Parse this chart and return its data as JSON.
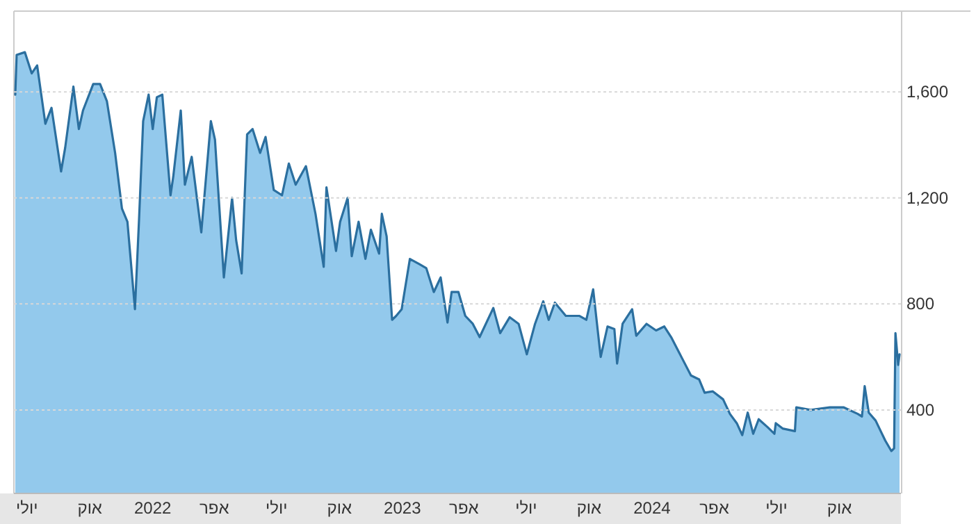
{
  "chart_data": {
    "type": "area",
    "x": [
      "2021-06-14",
      "2021-06-16",
      "2021-06-28",
      "2021-07-08",
      "2021-07-16",
      "2021-07-28",
      "2021-08-06",
      "2021-08-20",
      "2021-08-26",
      "2021-09-07",
      "2021-09-15",
      "2021-09-21",
      "2021-10-06",
      "2021-10-16",
      "2021-10-26",
      "2021-11-07",
      "2021-11-17",
      "2021-11-25",
      "2021-12-06",
      "2021-12-12",
      "2021-12-18",
      "2021-12-26",
      "2022-01-01",
      "2022-01-07",
      "2022-01-15",
      "2022-01-27",
      "2022-01-31",
      "2022-02-11",
      "2022-02-17",
      "2022-02-27",
      "2022-03-13",
      "2022-03-27",
      "2022-04-02",
      "2022-04-15",
      "2022-04-27",
      "2022-05-03",
      "2022-05-11",
      "2022-05-19",
      "2022-05-27",
      "2022-06-07",
      "2022-06-15",
      "2022-06-27",
      "2022-07-09",
      "2022-07-19",
      "2022-07-29",
      "2022-08-13",
      "2022-08-27",
      "2022-09-08",
      "2022-09-12",
      "2022-09-26",
      "2022-10-02",
      "2022-10-13",
      "2022-10-19",
      "2022-10-29",
      "2022-11-08",
      "2022-11-16",
      "2022-11-28",
      "2022-12-02",
      "2022-12-09",
      "2022-12-17",
      "2022-12-23",
      "2022-12-31",
      "2023-01-12",
      "2023-01-26",
      "2023-02-05",
      "2023-02-16",
      "2023-02-26",
      "2023-03-08",
      "2023-03-14",
      "2023-03-24",
      "2023-04-03",
      "2023-04-14",
      "2023-04-24",
      "2023-05-14",
      "2023-05-24",
      "2023-06-07",
      "2023-06-20",
      "2023-07-02",
      "2023-07-14",
      "2023-07-26",
      "2023-08-03",
      "2023-08-12",
      "2023-08-28",
      "2023-09-17",
      "2023-09-27",
      "2023-10-07",
      "2023-10-18",
      "2023-10-28",
      "2023-11-07",
      "2023-11-11",
      "2023-11-19",
      "2023-12-03",
      "2023-12-09",
      "2023-12-24",
      "2024-01-07",
      "2024-01-19",
      "2024-01-29",
      "2024-02-13",
      "2024-02-27",
      "2024-03-10",
      "2024-03-18",
      "2024-03-30",
      "2024-04-14",
      "2024-04-24",
      "2024-05-04",
      "2024-05-12",
      "2024-05-20",
      "2024-05-28",
      "2024-06-05",
      "2024-06-18",
      "2024-06-28",
      "2024-06-30",
      "2024-07-10",
      "2024-07-28",
      "2024-07-30",
      "2024-08-20",
      "2024-09-17",
      "2024-10-07",
      "2024-10-28",
      "2024-11-03",
      "2024-11-07",
      "2024-11-13",
      "2024-11-23",
      "2024-12-07",
      "2024-12-16",
      "2024-12-20",
      "2024-12-22",
      "2024-12-26",
      "2024-12-28"
    ],
    "series": [
      {
        "color": "#2b6f9f",
        "values": [
          1590,
          1740,
          1750,
          1670,
          1700,
          1480,
          1540,
          1300,
          1390,
          1620,
          1460,
          1530,
          1630,
          1630,
          1565,
          1370,
          1160,
          1110,
          780,
          1120,
          1490,
          1590,
          1460,
          1580,
          1590,
          1210,
          1280,
          1530,
          1250,
          1355,
          1070,
          1490,
          1420,
          900,
          1200,
          1040,
          915,
          1440,
          1460,
          1370,
          1430,
          1230,
          1210,
          1330,
          1250,
          1320,
          1140,
          940,
          1240,
          1000,
          1110,
          1200,
          980,
          1110,
          970,
          1080,
          990,
          1140,
          1055,
          740,
          755,
          780,
          970,
          950,
          935,
          845,
          900,
          730,
          845,
          845,
          755,
          725,
          675,
          785,
          690,
          750,
          725,
          610,
          725,
          810,
          740,
          805,
          755,
          755,
          740,
          855,
          600,
          715,
          705,
          575,
          725,
          780,
          680,
          725,
          700,
          715,
          675,
          600,
          530,
          515,
          465,
          470,
          440,
          385,
          350,
          305,
          390,
          310,
          365,
          335,
          310,
          350,
          330,
          320,
          410,
          400,
          410,
          410,
          385,
          375,
          490,
          390,
          360,
          285,
          245,
          255,
          690,
          570,
          610
        ]
      }
    ],
    "xlim": [
      "2021-06-12",
      "2024-12-30"
    ],
    "xticks": [
      {
        "value": "2021-07-01",
        "label": "יולי"
      },
      {
        "value": "2021-10-01",
        "label": "אוק"
      },
      {
        "value": "2022-01-01",
        "label": "2022"
      },
      {
        "value": "2022-04-01",
        "label": "אפר"
      },
      {
        "value": "2022-07-01",
        "label": "יולי"
      },
      {
        "value": "2022-10-01",
        "label": "אוק"
      },
      {
        "value": "2023-01-01",
        "label": "2023"
      },
      {
        "value": "2023-04-01",
        "label": "אפר"
      },
      {
        "value": "2023-07-01",
        "label": "יולי"
      },
      {
        "value": "2023-10-01",
        "label": "אוק"
      },
      {
        "value": "2024-01-01",
        "label": "2024"
      },
      {
        "value": "2024-04-01",
        "label": "אפר"
      },
      {
        "value": "2024-07-01",
        "label": "יולי"
      },
      {
        "value": "2024-10-01",
        "label": "אוק"
      }
    ],
    "ylim": [
      85,
      1905
    ],
    "yticks": [
      {
        "value": 400,
        "label": "400"
      },
      {
        "value": 800,
        "label": "800"
      },
      {
        "value": 1200,
        "label": "1,200"
      },
      {
        "value": 1600,
        "label": "1,600"
      }
    ],
    "grid": "y"
  }
}
